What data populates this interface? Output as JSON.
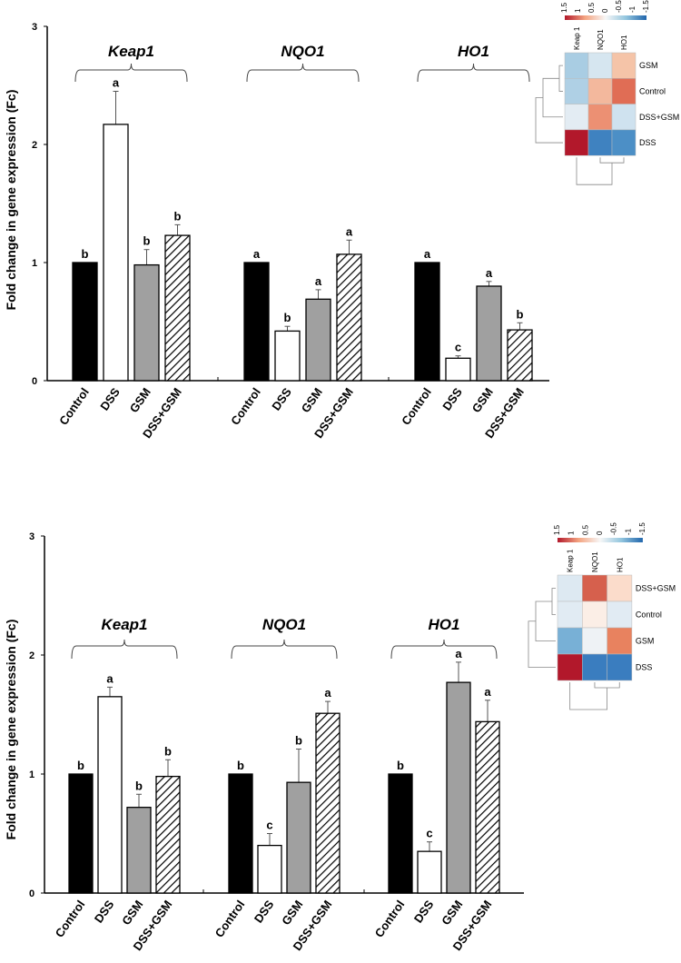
{
  "series_styles": {
    "Control": "#000000",
    "DSS": "#ffffff",
    "GSM": "#a0a0a0",
    "DSS+GSM": "hatch"
  },
  "chart_data": [
    {
      "type": "bar",
      "ylabel": "Fold change in gene expression (Fc)",
      "ylim": [
        0,
        3
      ],
      "yticks": [
        "0",
        "1",
        "2",
        "3"
      ],
      "groups": [
        {
          "gene": "Keap1",
          "bars": [
            {
              "category": "Control",
              "value": 1.0,
              "error_top": 1.0,
              "letter": "b"
            },
            {
              "category": "DSS",
              "value": 2.17,
              "error_top": 2.45,
              "letter": "a"
            },
            {
              "category": "GSM",
              "value": 0.98,
              "error_top": 1.11,
              "letter": "b"
            },
            {
              "category": "DSS+GSM",
              "value": 1.23,
              "error_top": 1.32,
              "letter": "b"
            }
          ]
        },
        {
          "gene": "NQO1",
          "bars": [
            {
              "category": "Control",
              "value": 1.0,
              "error_top": 1.0,
              "letter": "a"
            },
            {
              "category": "DSS",
              "value": 0.42,
              "error_top": 0.46,
              "letter": "b"
            },
            {
              "category": "GSM",
              "value": 0.69,
              "error_top": 0.77,
              "letter": "a"
            },
            {
              "category": "DSS+GSM",
              "value": 1.07,
              "error_top": 1.19,
              "letter": "a"
            }
          ]
        },
        {
          "gene": "HO1",
          "bars": [
            {
              "category": "Control",
              "value": 1.0,
              "error_top": 1.0,
              "letter": "a"
            },
            {
              "category": "DSS",
              "value": 0.19,
              "error_top": 0.21,
              "letter": "c"
            },
            {
              "category": "GSM",
              "value": 0.8,
              "error_top": 0.84,
              "letter": "a"
            },
            {
              "category": "DSS+GSM",
              "value": 0.43,
              "error_top": 0.49,
              "letter": "b"
            }
          ]
        }
      ],
      "heatmap": {
        "scale_ticks": [
          "1.5",
          "1",
          "0.5",
          "0",
          "-0.5",
          "-1",
          "-1.5"
        ],
        "scale_colors": [
          "#b2182b",
          "#f4a582",
          "#f7f7f7",
          "#92c5de",
          "#2166ac"
        ],
        "columns": [
          "Keap 1",
          "NQO1",
          "HO1"
        ],
        "rows": [
          "GSM",
          "Control",
          "DSS+GSM",
          "DSS"
        ],
        "colors": [
          [
            "#a9cde3",
            "#d6e6f0",
            "#f5c4a8"
          ],
          [
            "#afd0e5",
            "#f3b89d",
            "#e06d55"
          ],
          [
            "#e3ecf3",
            "#ec9073",
            "#cfe2ef"
          ],
          [
            "#b2182b",
            "#3f82c0",
            "#4c8fc6"
          ]
        ]
      }
    },
    {
      "type": "bar",
      "ylabel": "Fold change in gene expression (Fc)",
      "ylim": [
        0,
        3
      ],
      "yticks": [
        "0",
        "1",
        "2",
        "3"
      ],
      "groups": [
        {
          "gene": "Keap1",
          "bars": [
            {
              "category": "Control",
              "value": 1.0,
              "error_top": 1.0,
              "letter": "b"
            },
            {
              "category": "DSS",
              "value": 1.65,
              "error_top": 1.73,
              "letter": "a"
            },
            {
              "category": "GSM",
              "value": 0.72,
              "error_top": 0.83,
              "letter": "b"
            },
            {
              "category": "DSS+GSM",
              "value": 0.98,
              "error_top": 1.12,
              "letter": "b"
            }
          ]
        },
        {
          "gene": "NQO1",
          "bars": [
            {
              "category": "Control",
              "value": 1.0,
              "error_top": 1.0,
              "letter": "b"
            },
            {
              "category": "DSS",
              "value": 0.4,
              "error_top": 0.5,
              "letter": "c"
            },
            {
              "category": "GSM",
              "value": 0.93,
              "error_top": 1.21,
              "letter": "b"
            },
            {
              "category": "DSS+GSM",
              "value": 1.51,
              "error_top": 1.61,
              "letter": "a"
            }
          ]
        },
        {
          "gene": "HO1",
          "bars": [
            {
              "category": "Control",
              "value": 1.0,
              "error_top": 1.0,
              "letter": "b"
            },
            {
              "category": "DSS",
              "value": 0.35,
              "error_top": 0.43,
              "letter": "c"
            },
            {
              "category": "GSM",
              "value": 1.77,
              "error_top": 1.94,
              "letter": "a"
            },
            {
              "category": "DSS+GSM",
              "value": 1.44,
              "error_top": 1.62,
              "letter": "a"
            }
          ]
        }
      ],
      "heatmap": {
        "scale_ticks": [
          "1.5",
          "1",
          "0.5",
          "0",
          "-0.5",
          "-1",
          "-1.5"
        ],
        "scale_colors": [
          "#b2182b",
          "#f4a582",
          "#f7f7f7",
          "#92c5de",
          "#2166ac"
        ],
        "columns": [
          "Keap 1",
          "NQO1",
          "HO1"
        ],
        "rows": [
          "DSS+GSM",
          "Control",
          "GSM",
          "DSS"
        ],
        "colors": [
          [
            "#dde9f2",
            "#d6604d",
            "#fbdccb"
          ],
          [
            "#e1ebf3",
            "#fbeee6",
            "#e1ebf3"
          ],
          [
            "#78b0d6",
            "#eef2f5",
            "#e8825f"
          ],
          [
            "#b2182b",
            "#3a7dbf",
            "#3a7dbf"
          ]
        ]
      }
    }
  ]
}
